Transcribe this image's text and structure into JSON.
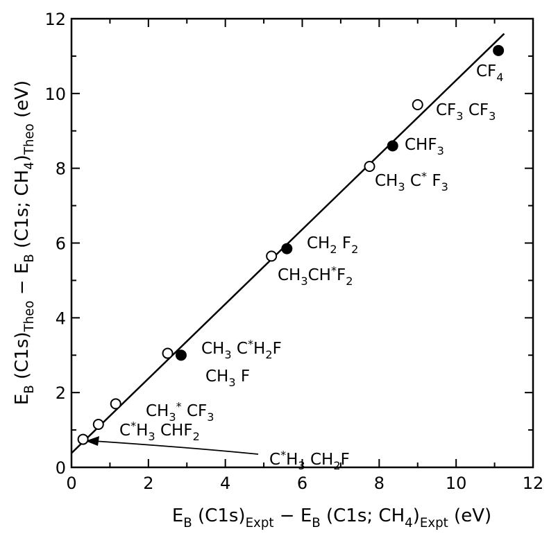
{
  "chart_data": {
    "type": "scatter",
    "title": "",
    "xlabel": "E_B (C1s)_Expt − E_B (C1s; CH4)_Expt (eV)",
    "ylabel": "E_B (C1s)_Theo − E_B (C1s; CH4)_Theo (eV)",
    "xlim": [
      0,
      12
    ],
    "ylim": [
      0,
      12
    ],
    "x_ticks": [
      "0",
      "2",
      "4",
      "6",
      "8",
      "10",
      "12"
    ],
    "y_ticks": [
      "0",
      "2",
      "4",
      "6",
      "8",
      "10",
      "12"
    ],
    "grid": false,
    "series": [
      {
        "marker": "filled-circle",
        "points": [
          {
            "x": 2.85,
            "y": 3.0
          },
          {
            "x": 5.6,
            "y": 5.85
          },
          {
            "x": 8.35,
            "y": 8.6
          },
          {
            "x": 11.1,
            "y": 11.15
          }
        ]
      },
      {
        "marker": "open-circle",
        "points": [
          {
            "x": 0.3,
            "y": 0.75
          },
          {
            "x": 0.7,
            "y": 1.15
          },
          {
            "x": 1.15,
            "y": 1.7
          },
          {
            "x": 2.5,
            "y": 3.05
          },
          {
            "x": 5.2,
            "y": 5.65
          },
          {
            "x": 7.75,
            "y": 8.05
          },
          {
            "x": 9.0,
            "y": 9.7
          }
        ]
      }
    ],
    "fit_line": {
      "x": [
        0,
        11.25
      ],
      "y": [
        0.38,
        11.6
      ]
    },
    "annotations": [
      {
        "id": "cf4",
        "parts": [
          {
            "t": "CF"
          },
          {
            "t": "4",
            "s": "sub"
          }
        ]
      },
      {
        "id": "cf3cf3",
        "parts": [
          {
            "t": "CF"
          },
          {
            "t": "3",
            "s": "sub"
          },
          {
            "t": " CF"
          },
          {
            "t": "3",
            "s": "sub"
          }
        ]
      },
      {
        "id": "chf3",
        "parts": [
          {
            "t": "CHF"
          },
          {
            "t": "3",
            "s": "sub"
          }
        ]
      },
      {
        "id": "ch3cf3star",
        "parts": [
          {
            "t": "CH"
          },
          {
            "t": "3",
            "s": "sub"
          },
          {
            "t": " C"
          },
          {
            "t": "*",
            "s": "sup"
          },
          {
            "t": " F"
          },
          {
            "t": "3",
            "s": "sub"
          }
        ]
      },
      {
        "id": "ch2f2",
        "parts": [
          {
            "t": "CH"
          },
          {
            "t": "2",
            "s": "sub"
          },
          {
            "t": " F"
          },
          {
            "t": "2",
            "s": "sub"
          }
        ]
      },
      {
        "id": "ch3chf2",
        "parts": [
          {
            "t": "CH"
          },
          {
            "t": "3",
            "s": "sub"
          },
          {
            "t": "CH"
          },
          {
            "t": "*",
            "s": "sup"
          },
          {
            "t": "F"
          },
          {
            "t": "2",
            "s": "sub"
          }
        ]
      },
      {
        "id": "ch3ch2f",
        "parts": [
          {
            "t": "CH"
          },
          {
            "t": "3",
            "s": "sub"
          },
          {
            "t": " C"
          },
          {
            "t": "*",
            "s": "sup"
          },
          {
            "t": "H"
          },
          {
            "t": "2",
            "s": "sub"
          },
          {
            "t": "F"
          }
        ]
      },
      {
        "id": "ch3f",
        "parts": [
          {
            "t": "CH"
          },
          {
            "t": "3",
            "s": "sub"
          },
          {
            "t": " F"
          }
        ]
      },
      {
        "id": "ch3star_cf3",
        "parts": [
          {
            "t": "CH"
          },
          {
            "t": "3",
            "s": "sub"
          },
          {
            "t": "*",
            "s": "sup"
          },
          {
            "t": " CF"
          },
          {
            "t": "3",
            "s": "sub"
          }
        ]
      },
      {
        "id": "cstarh3chf2",
        "parts": [
          {
            "t": "C"
          },
          {
            "t": "*",
            "s": "sup"
          },
          {
            "t": "H"
          },
          {
            "t": "3",
            "s": "sub"
          },
          {
            "t": " CHF"
          },
          {
            "t": "2",
            "s": "sub"
          }
        ]
      },
      {
        "id": "cstarh3ch2f",
        "parts": [
          {
            "t": "C"
          },
          {
            "t": "*",
            "s": "sup"
          },
          {
            "t": "H"
          },
          {
            "t": "3",
            "s": "sub"
          },
          {
            "t": " CH"
          },
          {
            "t": "2",
            "s": "sub"
          },
          {
            "t": "F"
          }
        ]
      }
    ],
    "x_title_parts": [
      {
        "t": "E"
      },
      {
        "t": "B",
        "s": "sub"
      },
      {
        "t": " (C1s)"
      },
      {
        "t": "Expt",
        "s": "sub"
      },
      {
        "t": " − E"
      },
      {
        "t": "B",
        "s": "sub"
      },
      {
        "t": " (C1s; CH"
      },
      {
        "t": "4",
        "s": "sub"
      },
      {
        "t": ")"
      },
      {
        "t": "Expt",
        "s": "sub"
      },
      {
        "t": " (eV)"
      }
    ],
    "y_title_parts": [
      {
        "t": "E"
      },
      {
        "t": "B",
        "s": "sub"
      },
      {
        "t": " (C1s)"
      },
      {
        "t": "Theo",
        "s": "sub"
      },
      {
        "t": " − E"
      },
      {
        "t": "B",
        "s": "sub"
      },
      {
        "t": " (C1s; CH"
      },
      {
        "t": "4",
        "s": "sub"
      },
      {
        "t": ")"
      },
      {
        "t": "Theo",
        "s": "sub"
      },
      {
        "t": " (eV)"
      }
    ]
  }
}
